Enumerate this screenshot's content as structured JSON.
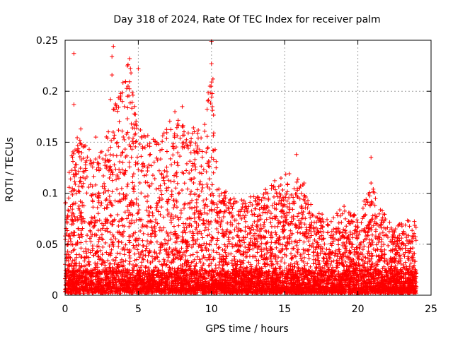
{
  "chart_data": {
    "type": "scatter",
    "title": "Day 318 of 2024, Rate Of TEC Index for receiver palm",
    "xlabel": "GPS time / hours",
    "ylabel": "ROTI / TECUs",
    "xlim": [
      0,
      25
    ],
    "ylim": [
      0,
      0.25
    ],
    "x_ticks": [
      0,
      5,
      10,
      15,
      20,
      25
    ],
    "x_tick_labels": [
      "0",
      "5",
      "10",
      "15",
      "20",
      "25"
    ],
    "y_ticks": [
      0,
      0.05,
      0.1,
      0.15,
      0.2,
      0.25
    ],
    "y_tick_labels": [
      "0",
      "0.05",
      "0.1",
      "0.15",
      "0.2",
      "0.25"
    ],
    "grid": true,
    "marker": "+",
    "color": "#ff0000",
    "series_name": "ROTI",
    "x_range": [
      0,
      24
    ],
    "envelope": [
      {
        "x": 0.0,
        "y": 0.09
      },
      {
        "x": 0.5,
        "y": 0.14
      },
      {
        "x": 1.0,
        "y": 0.16
      },
      {
        "x": 2.0,
        "y": 0.13
      },
      {
        "x": 3.0,
        "y": 0.16
      },
      {
        "x": 3.5,
        "y": 0.2
      },
      {
        "x": 4.5,
        "y": 0.23
      },
      {
        "x": 5.0,
        "y": 0.16
      },
      {
        "x": 6.0,
        "y": 0.15
      },
      {
        "x": 7.5,
        "y": 0.17
      },
      {
        "x": 8.5,
        "y": 0.16
      },
      {
        "x": 9.5,
        "y": 0.16
      },
      {
        "x": 10.0,
        "y": 0.22
      },
      {
        "x": 10.5,
        "y": 0.11
      },
      {
        "x": 11.5,
        "y": 0.09
      },
      {
        "x": 12.5,
        "y": 0.09
      },
      {
        "x": 13.5,
        "y": 0.1
      },
      {
        "x": 15.0,
        "y": 0.12
      },
      {
        "x": 16.0,
        "y": 0.12
      },
      {
        "x": 17.0,
        "y": 0.08
      },
      {
        "x": 18.0,
        "y": 0.07
      },
      {
        "x": 19.0,
        "y": 0.09
      },
      {
        "x": 20.0,
        "y": 0.07
      },
      {
        "x": 21.0,
        "y": 0.11
      },
      {
        "x": 22.0,
        "y": 0.07
      },
      {
        "x": 23.0,
        "y": 0.07
      },
      {
        "x": 24.0,
        "y": 0.07
      }
    ],
    "notable_points": [
      {
        "x": 0.6,
        "y": 0.237
      },
      {
        "x": 0.6,
        "y": 0.187
      },
      {
        "x": 3.3,
        "y": 0.244
      },
      {
        "x": 3.2,
        "y": 0.234
      },
      {
        "x": 3.2,
        "y": 0.216
      },
      {
        "x": 3.1,
        "y": 0.192
      },
      {
        "x": 4.4,
        "y": 0.232
      },
      {
        "x": 4.3,
        "y": 0.226
      },
      {
        "x": 4.5,
        "y": 0.218
      },
      {
        "x": 5.0,
        "y": 0.222
      },
      {
        "x": 4.3,
        "y": 0.205
      },
      {
        "x": 10.0,
        "y": 0.249
      },
      {
        "x": 10.0,
        "y": 0.227
      },
      {
        "x": 10.1,
        "y": 0.212
      },
      {
        "x": 9.9,
        "y": 0.205
      },
      {
        "x": 20.9,
        "y": 0.135
      },
      {
        "x": 20.9,
        "y": 0.11
      },
      {
        "x": 7.5,
        "y": 0.18
      },
      {
        "x": 8.0,
        "y": 0.185
      },
      {
        "x": 2.1,
        "y": 0.155
      },
      {
        "x": 15.8,
        "y": 0.138
      }
    ]
  }
}
